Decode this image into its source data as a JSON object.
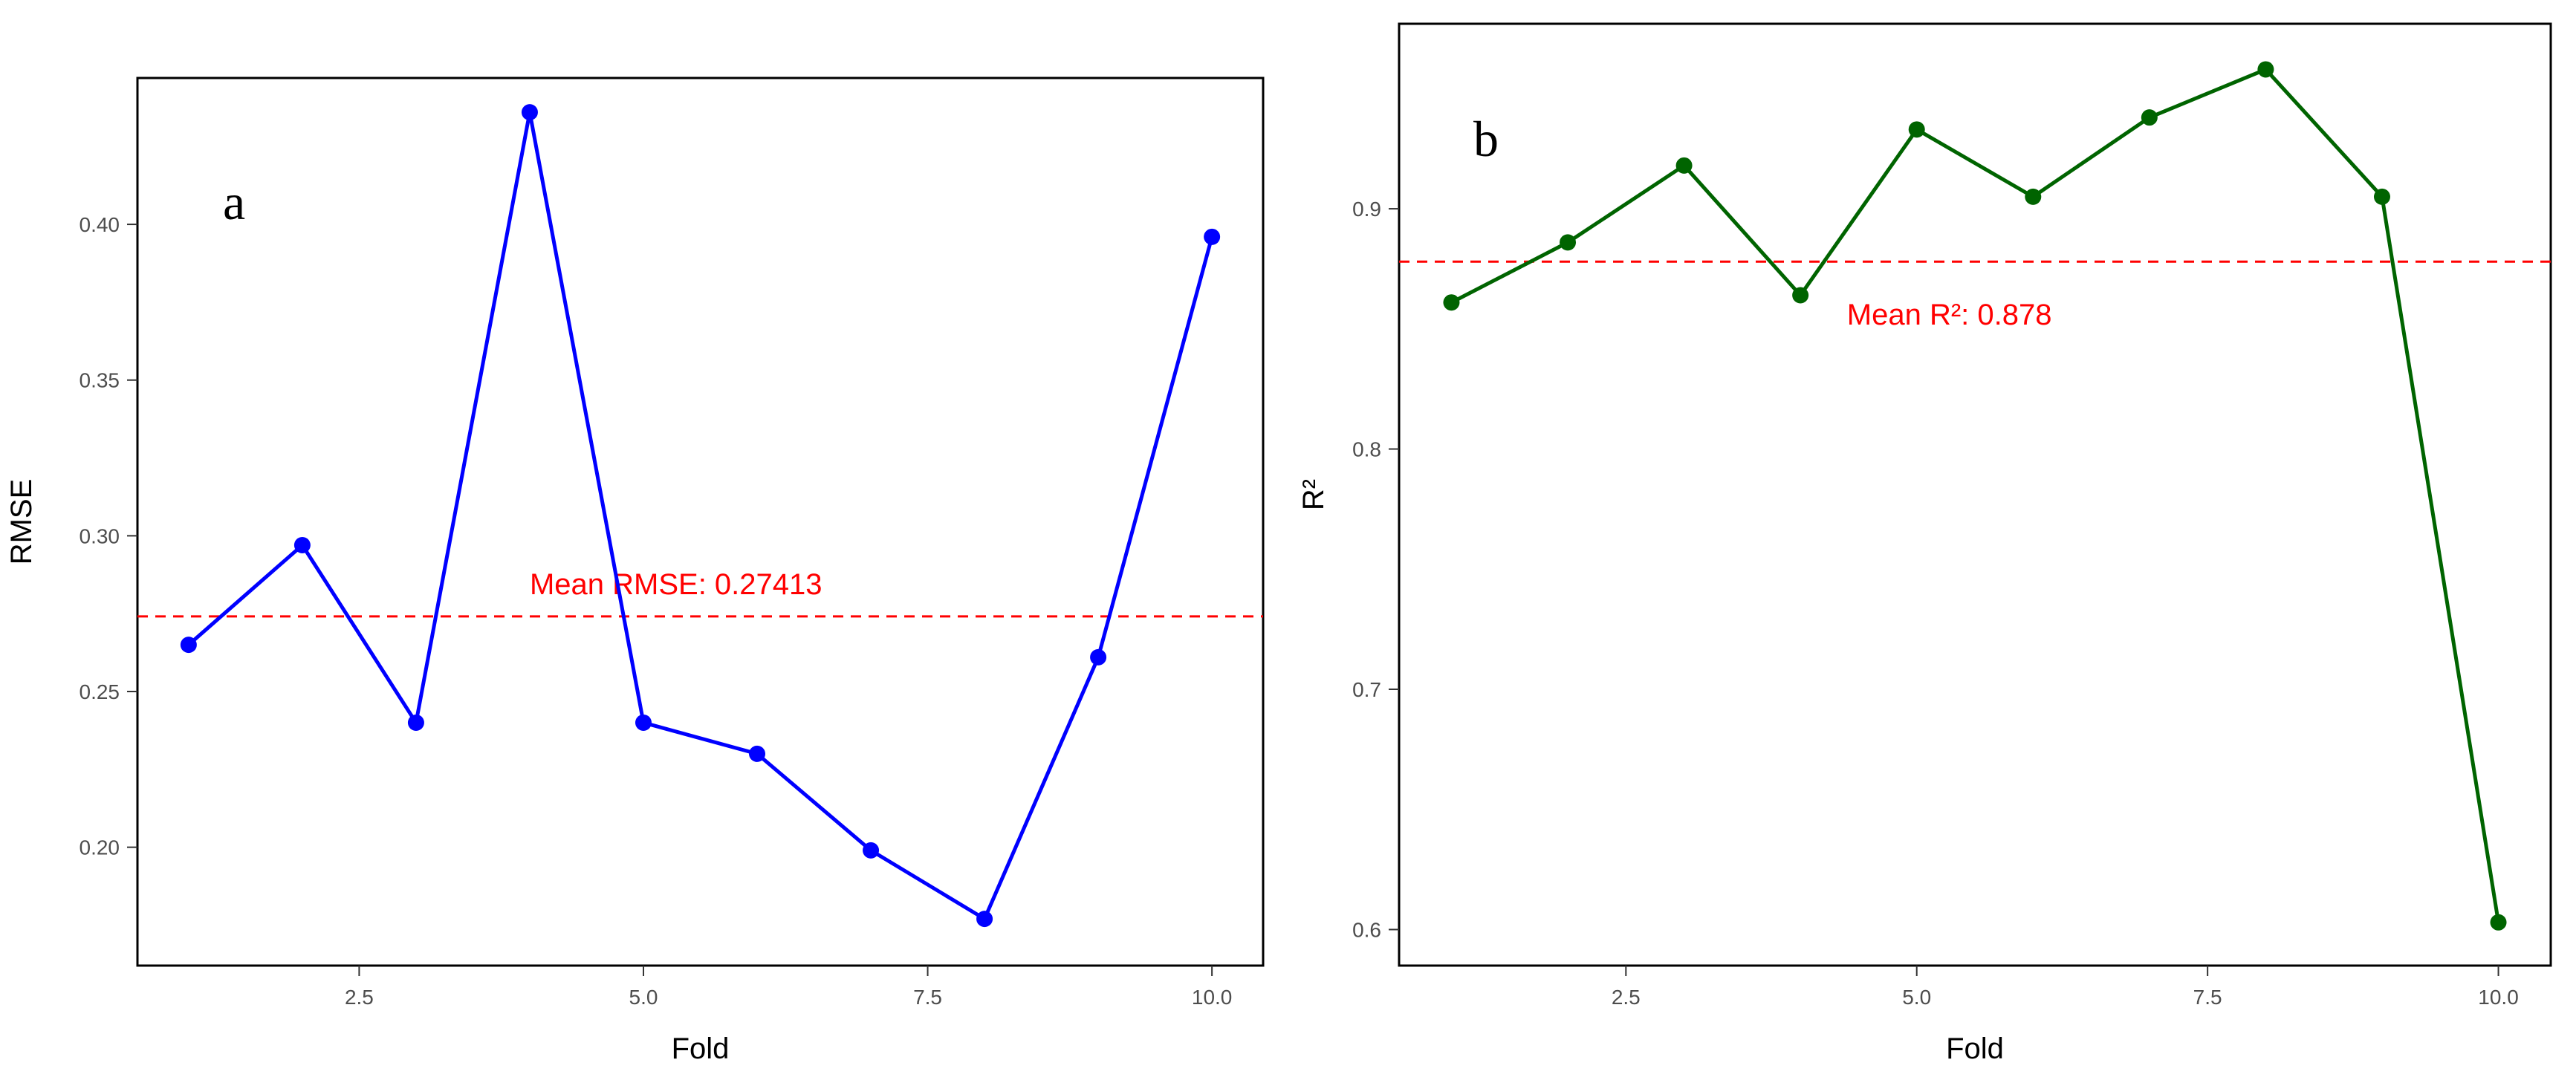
{
  "chart_data": [
    {
      "type": "line",
      "panel_label": "a",
      "title": "",
      "xlabel": "Fold",
      "ylabel": "RMSE",
      "xlim": [
        0.55,
        10.45
      ],
      "ylim": [
        0.162,
        0.447
      ],
      "xticks": [
        2.5,
        5.0,
        7.5,
        10.0
      ],
      "xtick_labels": [
        "2.5",
        "5.0",
        "7.5",
        "10.0"
      ],
      "yticks": [
        0.2,
        0.25,
        0.3,
        0.35,
        0.4
      ],
      "ytick_labels": [
        "0.20",
        "0.25",
        "0.30",
        "0.35",
        "0.40"
      ],
      "grid": false,
      "series": [
        {
          "x": [
            1,
            2,
            3,
            4,
            5,
            6,
            7,
            8,
            9,
            10
          ],
          "values": [
            0.265,
            0.297,
            0.24,
            0.436,
            0.24,
            0.23,
            0.199,
            0.177,
            0.261,
            0.396
          ],
          "color": "#0000ff"
        }
      ],
      "mean_line": {
        "value": 0.27413,
        "label": "Mean RMSE: 0.27413",
        "color": "#ff0000",
        "label_x": 4.0
      }
    },
    {
      "type": "line",
      "panel_label": "b",
      "title": "",
      "xlabel": "Fold",
      "ylabel": "R²",
      "xlim": [
        0.55,
        10.45
      ],
      "ylim": [
        0.585,
        0.977
      ],
      "xticks": [
        2.5,
        5.0,
        7.5,
        10.0
      ],
      "xtick_labels": [
        "2.5",
        "5.0",
        "7.5",
        "10.0"
      ],
      "yticks": [
        0.6,
        0.7,
        0.8,
        0.9
      ],
      "ytick_labels": [
        "0.6",
        "0.7",
        "0.8",
        "0.9"
      ],
      "grid": false,
      "series": [
        {
          "x": [
            1,
            2,
            3,
            4,
            5,
            6,
            7,
            8,
            9,
            10
          ],
          "values": [
            0.861,
            0.886,
            0.918,
            0.864,
            0.933,
            0.905,
            0.938,
            0.958,
            0.905,
            0.603
          ],
          "color": "#006400"
        }
      ],
      "mean_line": {
        "value": 0.878,
        "label": "Mean R²: 0.878",
        "color": "#ff0000",
        "label_x": 4.4
      }
    }
  ]
}
